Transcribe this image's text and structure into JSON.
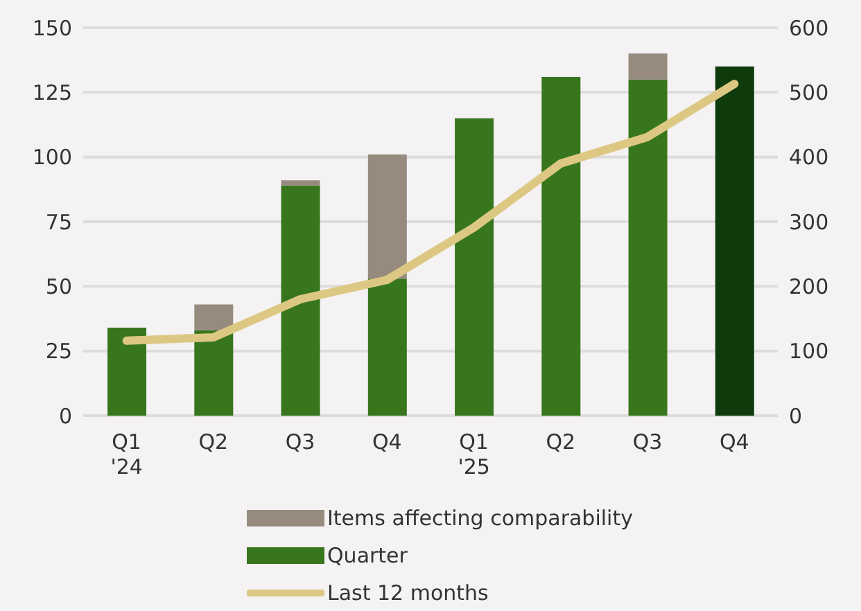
{
  "chart_data": {
    "type": "bar",
    "stacked": true,
    "categories": [
      "Q1\n'24",
      "Q2",
      "Q3",
      "Q4",
      "Q1\n'25",
      "Q2",
      "Q3",
      "Q4"
    ],
    "series": [
      {
        "name": "Quarter",
        "color": "#38761d",
        "colors": [
          "#38761d",
          "#38761d",
          "#38761d",
          "#38761d",
          "#38761d",
          "#38761d",
          "#38761d",
          "#0f3a0c"
        ],
        "values": [
          34,
          33,
          89,
          53,
          115,
          131,
          130,
          135
        ]
      },
      {
        "name": "Items affecting comparability",
        "color": "#978b80",
        "values": [
          null,
          10,
          2,
          48,
          null,
          null,
          10,
          null
        ]
      },
      {
        "name": "Last 12 months",
        "type": "line",
        "axis": "y2",
        "color": "#ddc883",
        "values": [
          116,
          121,
          180,
          210,
          291,
          390,
          431,
          513
        ]
      }
    ],
    "ylim": [
      0,
      150
    ],
    "yticks": [
      0,
      25,
      50,
      75,
      100,
      125,
      150
    ],
    "y2lim": [
      0,
      600
    ],
    "y2ticks": [
      0,
      100,
      200,
      300,
      400,
      500,
      600
    ],
    "grid": "y",
    "legend": "bottom",
    "marker": "none",
    "line_style": "solid"
  }
}
